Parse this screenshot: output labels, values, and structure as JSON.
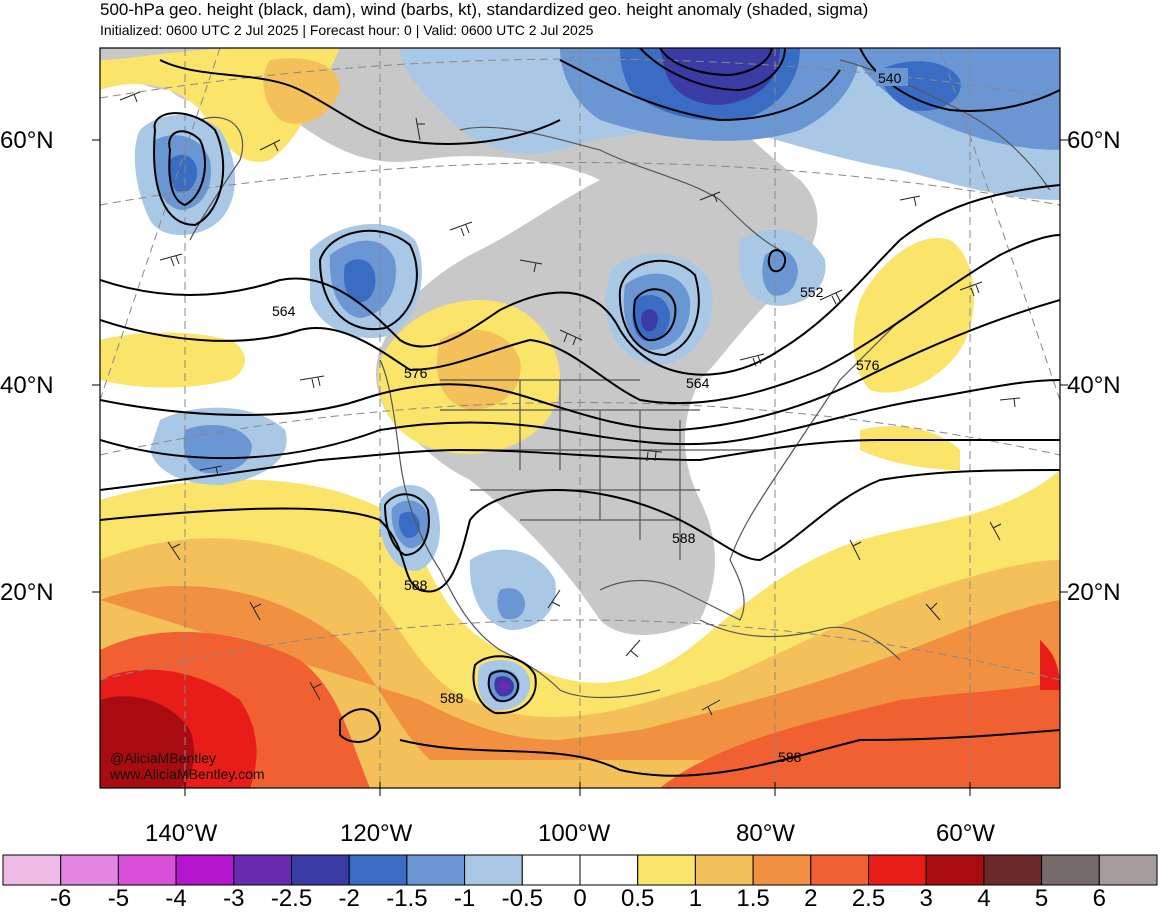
{
  "header": {
    "title": "500-hPa geo. height (black, dam), wind (barbs, kt), standardized geo. height anomaly (shaded, sigma)",
    "subtitle": "Initialized: 0600 UTC 2 Jul 2025 | Forecast hour: 0 | Valid: 0600 UTC 2 Jul 2025"
  },
  "map": {
    "lat_labels": [
      "60°N",
      "40°N",
      "20°N"
    ],
    "lon_labels": [
      "140°W",
      "120°W",
      "100°W",
      "80°W",
      "60°W"
    ],
    "contour_labels": [
      "540",
      "552",
      "564",
      "564",
      "576",
      "576",
      "588",
      "588",
      "588",
      "588"
    ],
    "credit_handle": "@AliciaMBentley",
    "credit_url": "www.AliciaMBentley.com"
  },
  "colorbar": {
    "ticks": [
      "-6",
      "-5",
      "-4",
      "-3",
      "-2.5",
      "-2",
      "-1.5",
      "-1",
      "-0.5",
      "0",
      "0.5",
      "1",
      "1.5",
      "2",
      "2.5",
      "3",
      "4",
      "5",
      "6"
    ],
    "colors": [
      "#eebbe6",
      "#e585e2",
      "#d94fd7",
      "#b316cc",
      "#6a2ab0",
      "#3b3ba6",
      "#3a6cc4",
      "#6a96d4",
      "#a8c8e6",
      "#ffffff",
      "#ffffff",
      "#fbe46a",
      "#f3c05a",
      "#f09040",
      "#f06030",
      "#e81c18",
      "#a80c10",
      "#6e2a2a",
      "#766a6a",
      "#a69c9c"
    ]
  },
  "colors": {
    "land_gray": "#c8c8c8",
    "contour": "#000000",
    "border": "#555555"
  }
}
